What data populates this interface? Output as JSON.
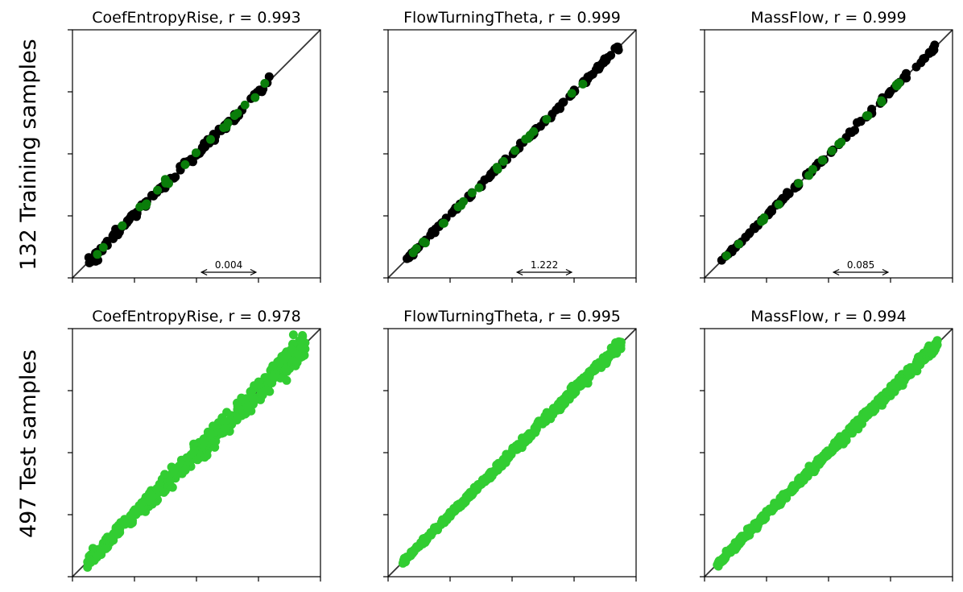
{
  "row_labels": [
    "132 Training samples",
    "497 Test samples"
  ],
  "colors": {
    "train_point": "#000000",
    "val_point": "#0a7d0a",
    "test_point": "#32cd32",
    "identity_line": "#333333",
    "axes": "#000000"
  },
  "chart_data": [
    {
      "type": "scatter",
      "row": 0,
      "col": 0,
      "title": "CoefEntropyRise, r = 0.993",
      "variable": "CoefEntropyRise",
      "r": 0.993,
      "scale_bar": "0.004",
      "n_black": 110,
      "n_green": 22,
      "n_test": 0,
      "grid": false,
      "tick_labels": false,
      "seed": 11
    },
    {
      "type": "scatter",
      "row": 0,
      "col": 1,
      "title": "FlowTurningTheta, r = 0.999",
      "variable": "FlowTurningTheta",
      "r": 0.999,
      "scale_bar": "1.222",
      "n_black": 110,
      "n_green": 22,
      "n_test": 0,
      "grid": false,
      "tick_labels": false,
      "seed": 23
    },
    {
      "type": "scatter",
      "row": 0,
      "col": 2,
      "title": "MassFlow, r = 0.999",
      "variable": "MassFlow",
      "r": 0.999,
      "scale_bar": "0.085",
      "n_black": 110,
      "n_green": 22,
      "n_test": 0,
      "grid": false,
      "tick_labels": false,
      "seed": 37
    },
    {
      "type": "scatter",
      "row": 1,
      "col": 0,
      "title": "CoefEntropyRise, r = 0.978",
      "variable": "CoefEntropyRise",
      "r": 0.978,
      "scale_bar": "",
      "n_black": 0,
      "n_green": 0,
      "n_test": 497,
      "grid": false,
      "tick_labels": false,
      "seed": 41
    },
    {
      "type": "scatter",
      "row": 1,
      "col": 1,
      "title": "FlowTurningTheta, r = 0.995",
      "variable": "FlowTurningTheta",
      "r": 0.995,
      "scale_bar": "",
      "n_black": 0,
      "n_green": 0,
      "n_test": 497,
      "grid": false,
      "tick_labels": false,
      "seed": 53
    },
    {
      "type": "scatter",
      "row": 1,
      "col": 2,
      "title": "MassFlow, r = 0.994",
      "variable": "MassFlow",
      "r": 0.994,
      "scale_bar": "",
      "n_black": 0,
      "n_green": 0,
      "n_test": 497,
      "grid": false,
      "tick_labels": false,
      "seed": 67
    }
  ]
}
